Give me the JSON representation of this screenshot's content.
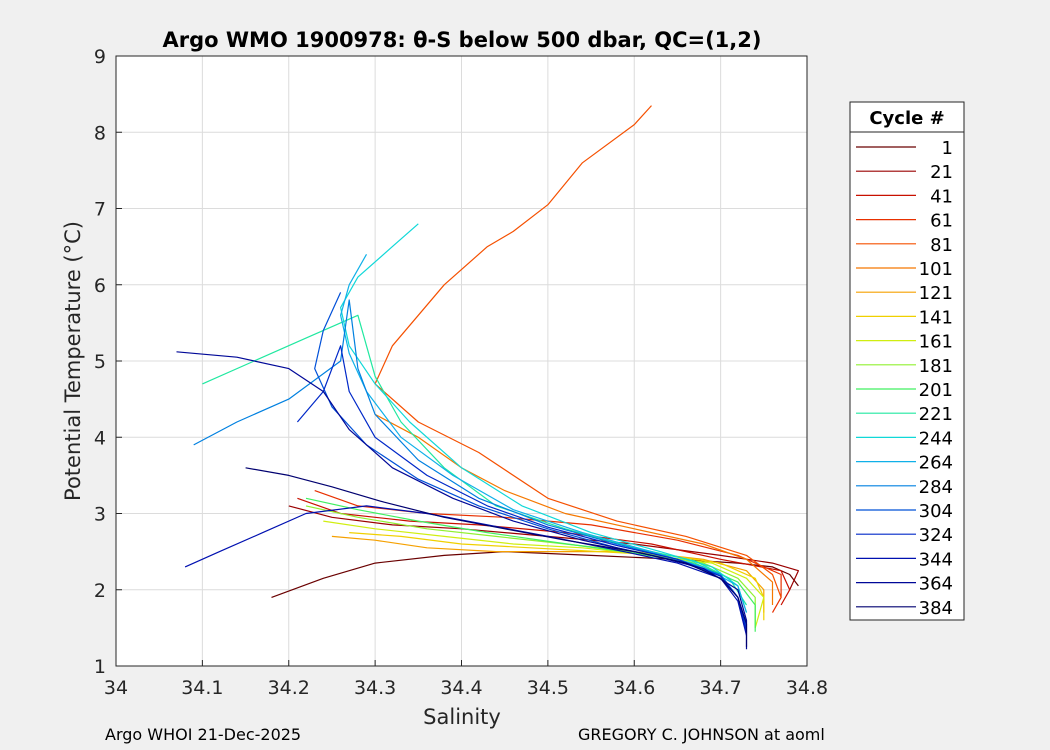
{
  "chart_data": {
    "type": "line",
    "title": "Argo WMO 1900978: θ-S below 500 dbar,  QC=(1,2)",
    "xlabel": "Salinity",
    "ylabel": "Potential Temperature (°C)",
    "xlim": [
      34.0,
      34.8
    ],
    "ylim": [
      1,
      9
    ],
    "xticks": [
      "34",
      "34.1",
      "34.2",
      "34.3",
      "34.4",
      "34.5",
      "34.6",
      "34.7",
      "34.8"
    ],
    "yticks": [
      "1",
      "2",
      "3",
      "4",
      "5",
      "6",
      "7",
      "8",
      "9"
    ],
    "grid": true,
    "legend_title": "Cycle #",
    "legend_position": "right",
    "legend": [
      {
        "label": "1",
        "color": "#6a0000"
      },
      {
        "label": "21",
        "color": "#9a0000"
      },
      {
        "label": "41",
        "color": "#c81000"
      },
      {
        "label": "61",
        "color": "#e83000"
      },
      {
        "label": "81",
        "color": "#f55000"
      },
      {
        "label": "101",
        "color": "#f57800"
      },
      {
        "label": "121",
        "color": "#f5a000"
      },
      {
        "label": "141",
        "color": "#f0d000"
      },
      {
        "label": "161",
        "color": "#d0ee10"
      },
      {
        "label": "181",
        "color": "#90f030"
      },
      {
        "label": "201",
        "color": "#40f060"
      },
      {
        "label": "221",
        "color": "#20e8a0"
      },
      {
        "label": "244",
        "color": "#10d8d8"
      },
      {
        "label": "264",
        "color": "#10b0e8"
      },
      {
        "label": "284",
        "color": "#0080e0"
      },
      {
        "label": "304",
        "color": "#0050d8"
      },
      {
        "label": "324",
        "color": "#0028c8"
      },
      {
        "label": "344",
        "color": "#0010b0"
      },
      {
        "label": "364",
        "color": "#000898"
      },
      {
        "label": "384",
        "color": "#000070"
      }
    ],
    "series": [
      {
        "name": "1",
        "color": "#6a0000",
        "points": [
          [
            34.18,
            1.9
          ],
          [
            34.24,
            2.15
          ],
          [
            34.3,
            2.35
          ],
          [
            34.38,
            2.45
          ],
          [
            34.45,
            2.5
          ],
          [
            34.55,
            2.45
          ],
          [
            34.65,
            2.4
          ],
          [
            34.72,
            2.35
          ],
          [
            34.76,
            2.3
          ],
          [
            34.78,
            2.2
          ],
          [
            34.79,
            2.05
          ]
        ]
      },
      {
        "name": "21",
        "color": "#9a0000",
        "points": [
          [
            34.2,
            3.1
          ],
          [
            34.25,
            2.95
          ],
          [
            34.32,
            2.85
          ],
          [
            34.4,
            2.8
          ],
          [
            34.5,
            2.7
          ],
          [
            34.6,
            2.6
          ],
          [
            34.7,
            2.45
          ],
          [
            34.76,
            2.35
          ],
          [
            34.79,
            2.25
          ],
          [
            34.78,
            2.0
          ]
        ]
      },
      {
        "name": "41",
        "color": "#c81000",
        "points": [
          [
            34.21,
            3.2
          ],
          [
            34.26,
            3.0
          ],
          [
            34.34,
            2.9
          ],
          [
            34.42,
            2.85
          ],
          [
            34.52,
            2.75
          ],
          [
            34.62,
            2.6
          ],
          [
            34.7,
            2.4
          ],
          [
            34.77,
            2.25
          ],
          [
            34.78,
            2.0
          ],
          [
            34.77,
            1.8
          ]
        ]
      },
      {
        "name": "61",
        "color": "#e83000",
        "points": [
          [
            34.23,
            3.3
          ],
          [
            34.28,
            3.1
          ],
          [
            34.36,
            3.0
          ],
          [
            34.45,
            2.95
          ],
          [
            34.55,
            2.85
          ],
          [
            34.65,
            2.65
          ],
          [
            34.72,
            2.45
          ],
          [
            34.77,
            2.2
          ],
          [
            34.77,
            1.9
          ],
          [
            34.76,
            1.7
          ]
        ]
      },
      {
        "name": "81",
        "color": "#f55000",
        "points": [
          [
            34.62,
            8.35
          ],
          [
            34.6,
            8.1
          ],
          [
            34.54,
            7.6
          ],
          [
            34.5,
            7.05
          ],
          [
            34.46,
            6.7
          ],
          [
            34.43,
            6.5
          ],
          [
            34.38,
            6.0
          ],
          [
            34.35,
            5.6
          ],
          [
            34.32,
            5.2
          ],
          [
            34.3,
            4.7
          ],
          [
            34.35,
            4.2
          ],
          [
            34.42,
            3.8
          ],
          [
            34.5,
            3.2
          ],
          [
            34.58,
            2.9
          ],
          [
            34.66,
            2.7
          ],
          [
            34.73,
            2.45
          ],
          [
            34.76,
            2.2
          ],
          [
            34.77,
            1.9
          ]
        ]
      },
      {
        "name": "101",
        "color": "#f57800",
        "points": [
          [
            34.3,
            4.3
          ],
          [
            34.35,
            4.0
          ],
          [
            34.4,
            3.6
          ],
          [
            34.45,
            3.3
          ],
          [
            34.52,
            3.0
          ],
          [
            34.6,
            2.8
          ],
          [
            34.68,
            2.6
          ],
          [
            34.73,
            2.4
          ],
          [
            34.76,
            2.1
          ],
          [
            34.76,
            1.8
          ]
        ]
      },
      {
        "name": "121",
        "color": "#f5a000",
        "points": [
          [
            34.25,
            2.7
          ],
          [
            34.3,
            2.65
          ],
          [
            34.36,
            2.55
          ],
          [
            34.44,
            2.5
          ],
          [
            34.52,
            2.5
          ],
          [
            34.6,
            2.5
          ],
          [
            34.68,
            2.4
          ],
          [
            34.73,
            2.25
          ],
          [
            34.75,
            2.0
          ],
          [
            34.75,
            1.7
          ]
        ]
      },
      {
        "name": "141",
        "color": "#f0d000",
        "points": [
          [
            34.27,
            2.75
          ],
          [
            34.33,
            2.7
          ],
          [
            34.4,
            2.6
          ],
          [
            34.48,
            2.55
          ],
          [
            34.56,
            2.5
          ],
          [
            34.64,
            2.45
          ],
          [
            34.7,
            2.35
          ],
          [
            34.74,
            2.15
          ],
          [
            34.75,
            1.9
          ],
          [
            34.75,
            1.6
          ]
        ]
      },
      {
        "name": "161",
        "color": "#d0ee10",
        "points": [
          [
            34.24,
            2.9
          ],
          [
            34.3,
            2.8
          ],
          [
            34.38,
            2.7
          ],
          [
            34.46,
            2.6
          ],
          [
            34.54,
            2.55
          ],
          [
            34.62,
            2.45
          ],
          [
            34.69,
            2.35
          ],
          [
            34.73,
            2.15
          ],
          [
            34.75,
            1.9
          ],
          [
            34.74,
            1.5
          ]
        ]
      },
      {
        "name": "181",
        "color": "#90f030",
        "points": [
          [
            34.22,
            3.1
          ],
          [
            34.28,
            2.95
          ],
          [
            34.36,
            2.8
          ],
          [
            34.44,
            2.7
          ],
          [
            34.52,
            2.6
          ],
          [
            34.6,
            2.5
          ],
          [
            34.68,
            2.35
          ],
          [
            34.72,
            2.15
          ],
          [
            34.74,
            1.9
          ],
          [
            34.74,
            1.5
          ]
        ]
      },
      {
        "name": "201",
        "color": "#40f060",
        "points": [
          [
            34.22,
            3.2
          ],
          [
            34.28,
            3.05
          ],
          [
            34.35,
            2.9
          ],
          [
            34.43,
            2.75
          ],
          [
            34.51,
            2.62
          ],
          [
            34.6,
            2.48
          ],
          [
            34.67,
            2.35
          ],
          [
            34.72,
            2.1
          ],
          [
            34.74,
            1.8
          ],
          [
            34.74,
            1.45
          ]
        ]
      },
      {
        "name": "221",
        "color": "#20e8a0",
        "points": [
          [
            34.1,
            4.7
          ],
          [
            34.16,
            5.0
          ],
          [
            34.22,
            5.3
          ],
          [
            34.28,
            5.6
          ],
          [
            34.3,
            4.8
          ],
          [
            34.33,
            4.2
          ],
          [
            34.38,
            3.6
          ],
          [
            34.44,
            3.1
          ],
          [
            34.52,
            2.8
          ],
          [
            34.6,
            2.55
          ],
          [
            34.67,
            2.38
          ],
          [
            34.71,
            2.15
          ],
          [
            34.73,
            1.8
          ]
        ]
      },
      {
        "name": "244",
        "color": "#10d8d8",
        "points": [
          [
            34.35,
            6.8
          ],
          [
            34.32,
            6.5
          ],
          [
            34.28,
            6.1
          ],
          [
            34.26,
            5.7
          ],
          [
            34.27,
            5.2
          ],
          [
            34.3,
            4.7
          ],
          [
            34.34,
            4.2
          ],
          [
            34.4,
            3.6
          ],
          [
            34.47,
            3.1
          ],
          [
            34.55,
            2.75
          ],
          [
            34.63,
            2.5
          ],
          [
            34.69,
            2.3
          ],
          [
            34.72,
            2.05
          ],
          [
            34.73,
            1.7
          ]
        ]
      },
      {
        "name": "264",
        "color": "#10b0e8",
        "points": [
          [
            34.29,
            6.4
          ],
          [
            34.27,
            6.0
          ],
          [
            34.26,
            5.6
          ],
          [
            34.27,
            5.1
          ],
          [
            34.29,
            4.6
          ],
          [
            34.33,
            4.0
          ],
          [
            34.39,
            3.5
          ],
          [
            34.46,
            3.05
          ],
          [
            34.54,
            2.75
          ],
          [
            34.62,
            2.5
          ],
          [
            34.68,
            2.3
          ],
          [
            34.72,
            2.05
          ],
          [
            34.73,
            1.7
          ]
        ]
      },
      {
        "name": "284",
        "color": "#0080e0",
        "points": [
          [
            34.09,
            3.9
          ],
          [
            34.14,
            4.2
          ],
          [
            34.2,
            4.5
          ],
          [
            34.26,
            5.0
          ],
          [
            34.27,
            5.8
          ],
          [
            34.28,
            4.9
          ],
          [
            34.3,
            4.3
          ],
          [
            34.35,
            3.7
          ],
          [
            34.42,
            3.2
          ],
          [
            34.5,
            2.85
          ],
          [
            34.58,
            2.6
          ],
          [
            34.65,
            2.4
          ],
          [
            34.7,
            2.2
          ],
          [
            34.72,
            1.9
          ],
          [
            34.73,
            1.55
          ]
        ]
      },
      {
        "name": "304",
        "color": "#0050d8",
        "points": [
          [
            34.26,
            5.9
          ],
          [
            34.24,
            5.4
          ],
          [
            34.23,
            4.9
          ],
          [
            34.25,
            4.4
          ],
          [
            34.29,
            3.9
          ],
          [
            34.35,
            3.45
          ],
          [
            34.42,
            3.1
          ],
          [
            34.5,
            2.8
          ],
          [
            34.58,
            2.55
          ],
          [
            34.65,
            2.38
          ],
          [
            34.7,
            2.18
          ],
          [
            34.72,
            1.9
          ],
          [
            34.73,
            1.5
          ]
        ]
      },
      {
        "name": "324",
        "color": "#0028c8",
        "points": [
          [
            34.21,
            4.2
          ],
          [
            34.24,
            4.6
          ],
          [
            34.26,
            5.2
          ],
          [
            34.27,
            4.6
          ],
          [
            34.3,
            4.0
          ],
          [
            34.36,
            3.5
          ],
          [
            34.43,
            3.1
          ],
          [
            34.5,
            2.82
          ],
          [
            34.58,
            2.58
          ],
          [
            34.65,
            2.4
          ],
          [
            34.7,
            2.18
          ],
          [
            34.72,
            1.9
          ],
          [
            34.73,
            1.45
          ]
        ]
      },
      {
        "name": "344",
        "color": "#0010b0",
        "points": [
          [
            34.08,
            2.3
          ],
          [
            34.12,
            2.5
          ],
          [
            34.17,
            2.75
          ],
          [
            34.22,
            3.0
          ],
          [
            34.29,
            3.1
          ],
          [
            34.36,
            3.0
          ],
          [
            34.43,
            2.85
          ],
          [
            34.5,
            2.7
          ],
          [
            34.58,
            2.52
          ],
          [
            34.65,
            2.35
          ],
          [
            34.7,
            2.15
          ],
          [
            34.72,
            1.85
          ],
          [
            34.73,
            1.4
          ]
        ]
      },
      {
        "name": "364",
        "color": "#000898",
        "points": [
          [
            34.07,
            5.12
          ],
          [
            34.14,
            5.05
          ],
          [
            34.2,
            4.9
          ],
          [
            34.24,
            4.6
          ],
          [
            34.27,
            4.1
          ],
          [
            34.32,
            3.6
          ],
          [
            34.39,
            3.2
          ],
          [
            34.46,
            2.9
          ],
          [
            34.54,
            2.65
          ],
          [
            34.62,
            2.45
          ],
          [
            34.68,
            2.28
          ],
          [
            34.72,
            2.0
          ],
          [
            34.73,
            1.6
          ],
          [
            34.73,
            1.22
          ]
        ]
      },
      {
        "name": "384",
        "color": "#000070",
        "points": [
          [
            34.15,
            3.6
          ],
          [
            34.2,
            3.5
          ],
          [
            34.25,
            3.35
          ],
          [
            34.31,
            3.15
          ],
          [
            34.38,
            2.95
          ],
          [
            34.45,
            2.8
          ],
          [
            34.52,
            2.65
          ],
          [
            34.6,
            2.5
          ],
          [
            34.66,
            2.35
          ],
          [
            34.7,
            2.15
          ],
          [
            34.72,
            1.9
          ],
          [
            34.73,
            1.55
          ],
          [
            34.73,
            1.25
          ]
        ]
      }
    ]
  },
  "footer": {
    "left": "Argo WHOI 21-Dec-2025",
    "right": "GREGORY C. JOHNSON at aoml"
  }
}
